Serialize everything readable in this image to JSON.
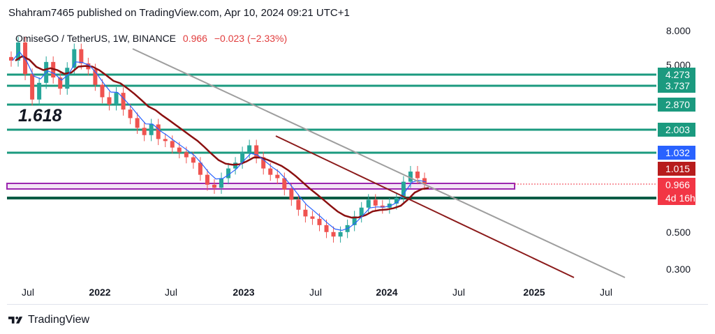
{
  "header": {
    "published": "Shahram7465 published on TradingView.com, Apr 10, 2024 09:21 UTC+1"
  },
  "symbol": {
    "title": "OmiseGO / TetherUS, 1W, BINANCE",
    "price": "0.966",
    "change": "−0.023 (−2.33%)"
  },
  "annotation": {
    "fib": "1.618"
  },
  "footer": {
    "brand": "TradingView"
  },
  "colors": {
    "level_green": "#1b9a7f",
    "level_dark": "#0c5b45",
    "channel_purple": "#9c27b0",
    "trend_grey": "#9e9e9e",
    "trend_darkred": "#8b1a1a",
    "ema_red": "#8b1010",
    "ema_blue": "#2962ff",
    "candle_up": "#26a69a",
    "candle_down": "#ef5350"
  },
  "chart_data": {
    "type": "candlestick",
    "x_ticks": [
      "Jul",
      "2022",
      "Jul",
      "2023",
      "Jul",
      "2024",
      "Jul",
      "2025",
      "Jul"
    ],
    "y_ticks": [
      "8.000",
      "5.000",
      "0.500",
      "0.300"
    ],
    "scale": "log",
    "horizontal_levels": [
      {
        "label": "4.273",
        "color": "#1b9a7f"
      },
      {
        "label": "3.737",
        "color": "#1b9a7f"
      },
      {
        "label": "2.870",
        "color": "#1b9a7f"
      },
      {
        "label": "2.003",
        "color": "#1b9a7f"
      },
      {
        "label": "1.467",
        "color": "#1b9a7f"
      },
      {
        "label": "0.795",
        "color": "#0c5b45"
      }
    ],
    "price_tags": [
      {
        "label": "1.032",
        "color": "#2962ff"
      },
      {
        "label": "1.015",
        "color": "#b71c1c"
      },
      {
        "label": "0.966",
        "color": "#f23645"
      },
      {
        "label": "4d 16h",
        "color": "#f23645"
      }
    ],
    "current_price": 0.966,
    "ohlc_weekly_close_sketch": [
      5.3,
      6.8,
      4.4,
      3.1,
      3.9,
      5.2,
      4.2,
      3.6,
      4.8,
      6.2,
      5.1,
      4.7,
      3.8,
      3.2,
      2.9,
      3.4,
      2.7,
      2.4,
      2.1,
      1.9,
      2.2,
      1.8,
      1.75,
      1.6,
      1.5,
      1.4,
      1.3,
      1.1,
      0.96,
      0.92,
      1.05,
      1.2,
      1.3,
      1.5,
      1.65,
      1.4,
      1.2,
      1.1,
      1.05,
      0.9,
      0.78,
      0.68,
      0.62,
      0.6,
      0.55,
      0.5,
      0.47,
      0.5,
      0.55,
      0.62,
      0.7,
      0.78,
      0.72,
      0.7,
      0.74,
      0.8,
      1.0,
      1.15,
      1.05,
      0.97
    ]
  }
}
